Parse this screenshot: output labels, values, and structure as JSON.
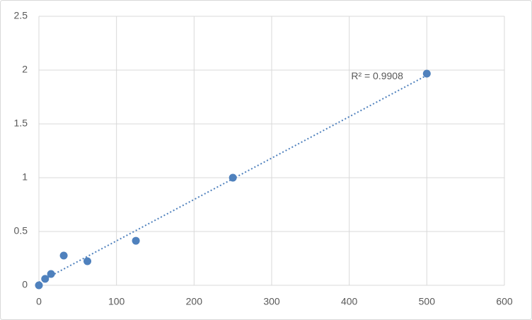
{
  "chart_data": {
    "type": "scatter",
    "x": [
      0,
      8,
      15.6,
      32,
      62.5,
      125,
      250,
      500
    ],
    "values": [
      0,
      0.06,
      0.105,
      0.276,
      0.224,
      0.414,
      1.0,
      1.967
    ],
    "color": "#4f81bd",
    "xlim": [
      0,
      600
    ],
    "xticks": [
      0,
      100,
      200,
      300,
      400,
      500,
      600
    ],
    "ylim": [
      0,
      2.5
    ],
    "yticks": [
      0,
      0.5,
      1,
      1.5,
      2,
      2.5
    ],
    "grid": true,
    "trendline": {
      "type": "linear",
      "style": "dotted",
      "label": "R² = 0.9908"
    }
  }
}
